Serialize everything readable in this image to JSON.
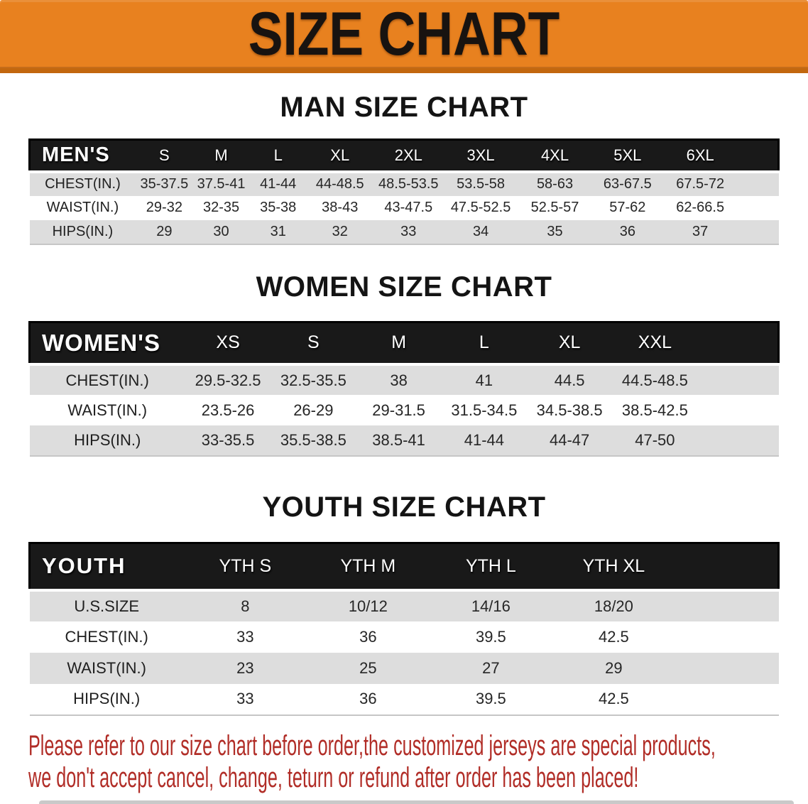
{
  "banner": {
    "title": "SIZE CHART"
  },
  "sections": [
    {
      "title": "MAN SIZE CHART",
      "header_label": "MEN'S",
      "columns": [
        "S",
        "M",
        "L",
        "XL",
        "2XL",
        "3XL",
        "4XL",
        "5XL",
        "6XL"
      ],
      "rows": [
        {
          "label": "CHEST(IN.)",
          "values": [
            "35-37.5",
            "37.5-41",
            "41-44",
            "44-48.5",
            "48.5-53.5",
            "53.5-58",
            "58-63",
            "63-67.5",
            "67.5-72"
          ]
        },
        {
          "label": "WAIST(IN.)",
          "values": [
            "29-32",
            "32-35",
            "35-38",
            "38-43",
            "43-47.5",
            "47.5-52.5",
            "52.5-57",
            "57-62",
            "62-66.5"
          ]
        },
        {
          "label": "HIPS(IN.)",
          "values": [
            "29",
            "30",
            "31",
            "32",
            "33",
            "34",
            "35",
            "36",
            "37"
          ]
        }
      ]
    },
    {
      "title": "WOMEN SIZE CHART",
      "header_label": "WOMEN'S",
      "columns": [
        "XS",
        "S",
        "M",
        "L",
        "XL",
        "XXL"
      ],
      "rows": [
        {
          "label": "CHEST(IN.)",
          "values": [
            "29.5-32.5",
            "32.5-35.5",
            "38",
            "41",
            "44.5",
            "44.5-48.5"
          ]
        },
        {
          "label": "WAIST(IN.)",
          "values": [
            "23.5-26",
            "26-29",
            "29-31.5",
            "31.5-34.5",
            "34.5-38.5",
            "38.5-42.5"
          ]
        },
        {
          "label": "HIPS(IN.)",
          "values": [
            "33-35.5",
            "35.5-38.5",
            "38.5-41",
            "41-44",
            "44-47",
            "47-50"
          ]
        }
      ]
    },
    {
      "title": "YOUTH SIZE CHART",
      "header_label": "YOUTH",
      "columns": [
        "YTH S",
        "YTH M",
        "YTH L",
        "YTH XL"
      ],
      "rows": [
        {
          "label": "U.S.SIZE",
          "values": [
            "8",
            "10/12",
            "14/16",
            "18/20"
          ]
        },
        {
          "label": "CHEST(IN.)",
          "values": [
            "33",
            "36",
            "39.5",
            "42.5"
          ]
        },
        {
          "label": "WAIST(IN.)",
          "values": [
            "23",
            "25",
            "27",
            "29"
          ]
        },
        {
          "label": "HIPS(IN.)",
          "values": [
            "33",
            "36",
            "39.5",
            "42.5"
          ]
        }
      ]
    }
  ],
  "disclaimer": {
    "line1": "Please refer to our size chart before order,the customized jerseys are special products,",
    "line2": "we don't accept cancel, change, teturn or refund after order has been placed!"
  },
  "colors": {
    "banner-bg": "#E8811F",
    "banner-edge": "#C2670E",
    "header-bg": "#191919",
    "row-gray": "#DDDDDD",
    "disclaimer-red": "#B12D27"
  }
}
